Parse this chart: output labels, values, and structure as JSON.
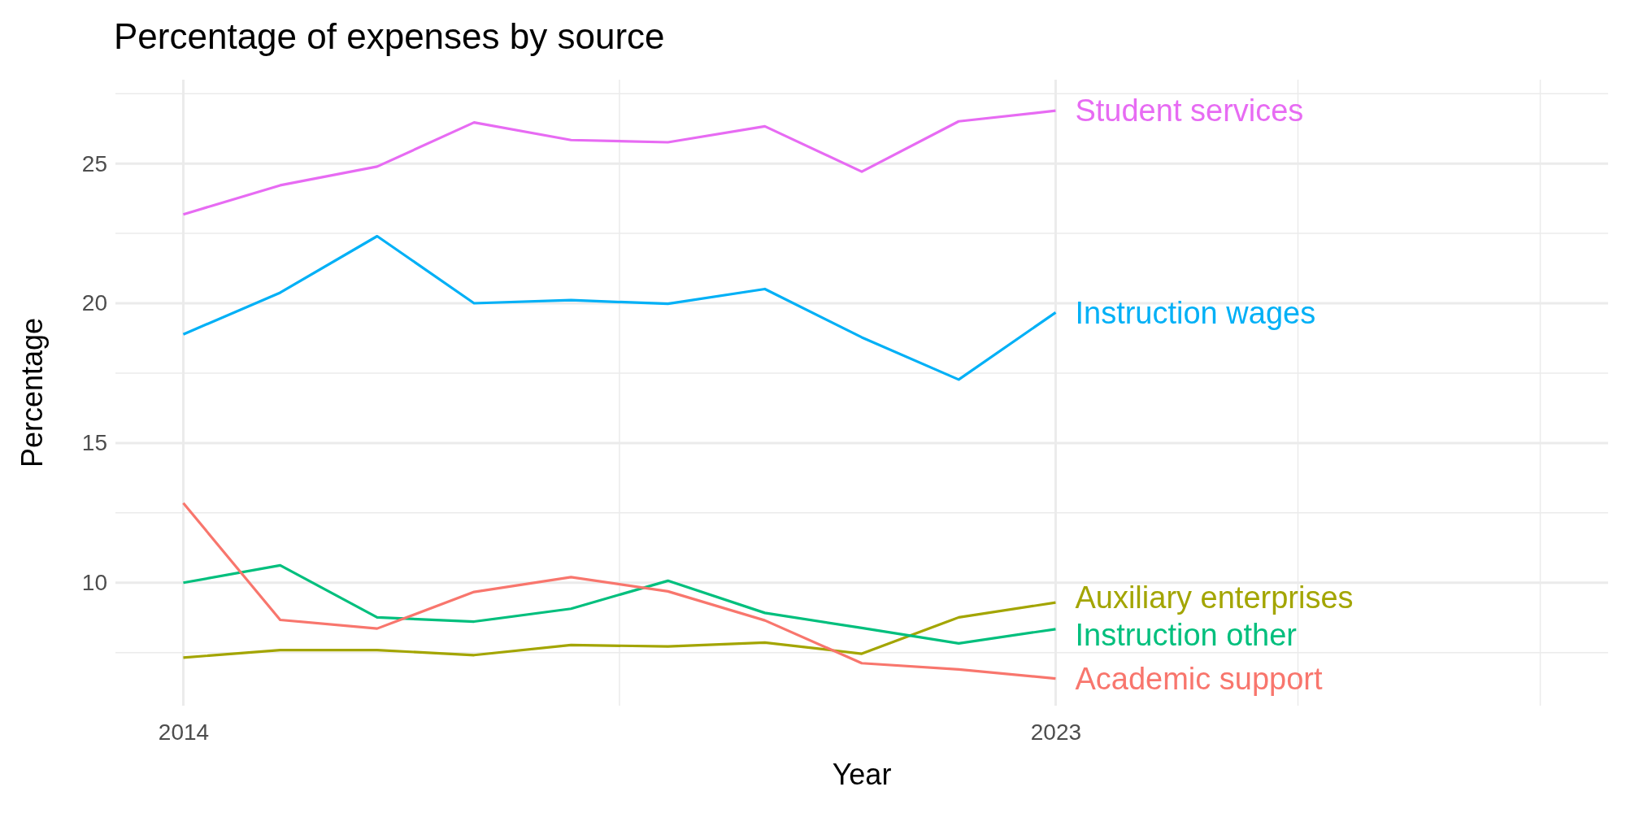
{
  "chart_data": {
    "type": "line",
    "title": "Percentage of expenses by source",
    "xlabel": "Year",
    "ylabel": "Percentage",
    "x": [
      2014,
      2015,
      2016,
      2017,
      2018,
      2019,
      2020,
      2021,
      2022,
      2023
    ],
    "xlim": [
      2013.3,
      2028.7
    ],
    "xticks": [
      2014,
      {
        "value": 2018.5,
        "label": null
      },
      2023,
      {
        "value": 2025.5,
        "label": null
      },
      {
        "value": 2028,
        "label": null
      }
    ],
    "ylim": [
      5.6,
      28
    ],
    "yticks": [
      {
        "value": 7.5,
        "label": null
      },
      10,
      {
        "value": 12.5,
        "label": null
      },
      15,
      {
        "value": 17.5,
        "label": null
      },
      20,
      {
        "value": 22.5,
        "label": null
      },
      25,
      {
        "value": 27.5,
        "label": null
      }
    ],
    "grid": true,
    "legend": false,
    "tick_labels": "xy",
    "series": [
      {
        "name": "Student services",
        "color": "#e76bf3",
        "values": [
          23.18,
          24.22,
          24.89,
          26.47,
          25.84,
          25.76,
          26.33,
          24.71,
          26.51,
          26.89
        ]
      },
      {
        "name": "Instruction wages",
        "color": "#00b0f6",
        "values": [
          18.89,
          20.38,
          22.4,
          20.0,
          20.11,
          19.98,
          20.51,
          18.78,
          17.27,
          19.67
        ]
      },
      {
        "name": "Auxiliary enterprises",
        "color": "#a3a500",
        "values": [
          7.32,
          7.59,
          7.59,
          7.41,
          7.77,
          7.72,
          7.86,
          7.46,
          8.76,
          9.29
        ]
      },
      {
        "name": "Instruction other",
        "color": "#00bf7d",
        "values": [
          10.0,
          10.62,
          8.76,
          8.61,
          9.07,
          10.07,
          8.92,
          8.38,
          7.83,
          8.34
        ]
      },
      {
        "name": "Academic support",
        "color": "#f8766d",
        "values": [
          12.85,
          8.67,
          8.36,
          9.67,
          10.2,
          9.69,
          8.65,
          7.12,
          6.9,
          6.57
        ]
      }
    ]
  }
}
